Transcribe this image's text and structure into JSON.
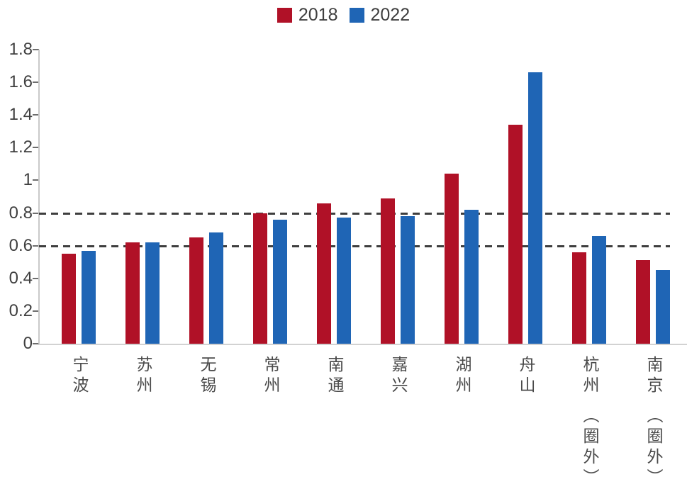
{
  "chart_data": {
    "type": "bar",
    "title": "",
    "xlabel": "",
    "ylabel": "",
    "ylim": [
      0,
      1.8
    ],
    "ytick_step": 0.2,
    "grid": false,
    "reference_lines": [
      0.6,
      0.8
    ],
    "legend_position": "top-center",
    "categories": [
      {
        "label": "宁波",
        "suffix": ""
      },
      {
        "label": "苏州",
        "suffix": ""
      },
      {
        "label": "无锡",
        "suffix": ""
      },
      {
        "label": "常州",
        "suffix": ""
      },
      {
        "label": "南通",
        "suffix": ""
      },
      {
        "label": "嘉兴",
        "suffix": ""
      },
      {
        "label": "湖州",
        "suffix": ""
      },
      {
        "label": "舟山",
        "suffix": ""
      },
      {
        "label": "杭州",
        "suffix": "（圈外）"
      },
      {
        "label": "南京",
        "suffix": "（圈外）"
      }
    ],
    "series": [
      {
        "name": "2018",
        "color": "#b01127",
        "values": [
          0.55,
          0.62,
          0.65,
          0.8,
          0.86,
          0.89,
          1.04,
          1.34,
          0.56,
          0.51
        ]
      },
      {
        "name": "2022",
        "color": "#1f65b5",
        "values": [
          0.57,
          0.62,
          0.68,
          0.76,
          0.77,
          0.78,
          0.82,
          1.66,
          0.66,
          0.45
        ]
      }
    ]
  },
  "colors": {
    "series_2018": "#b01127",
    "series_2022": "#1f65b5",
    "text": "#3f3f3f",
    "axis": "#c9c9c9",
    "reference_dash": "#3e3e3e"
  }
}
